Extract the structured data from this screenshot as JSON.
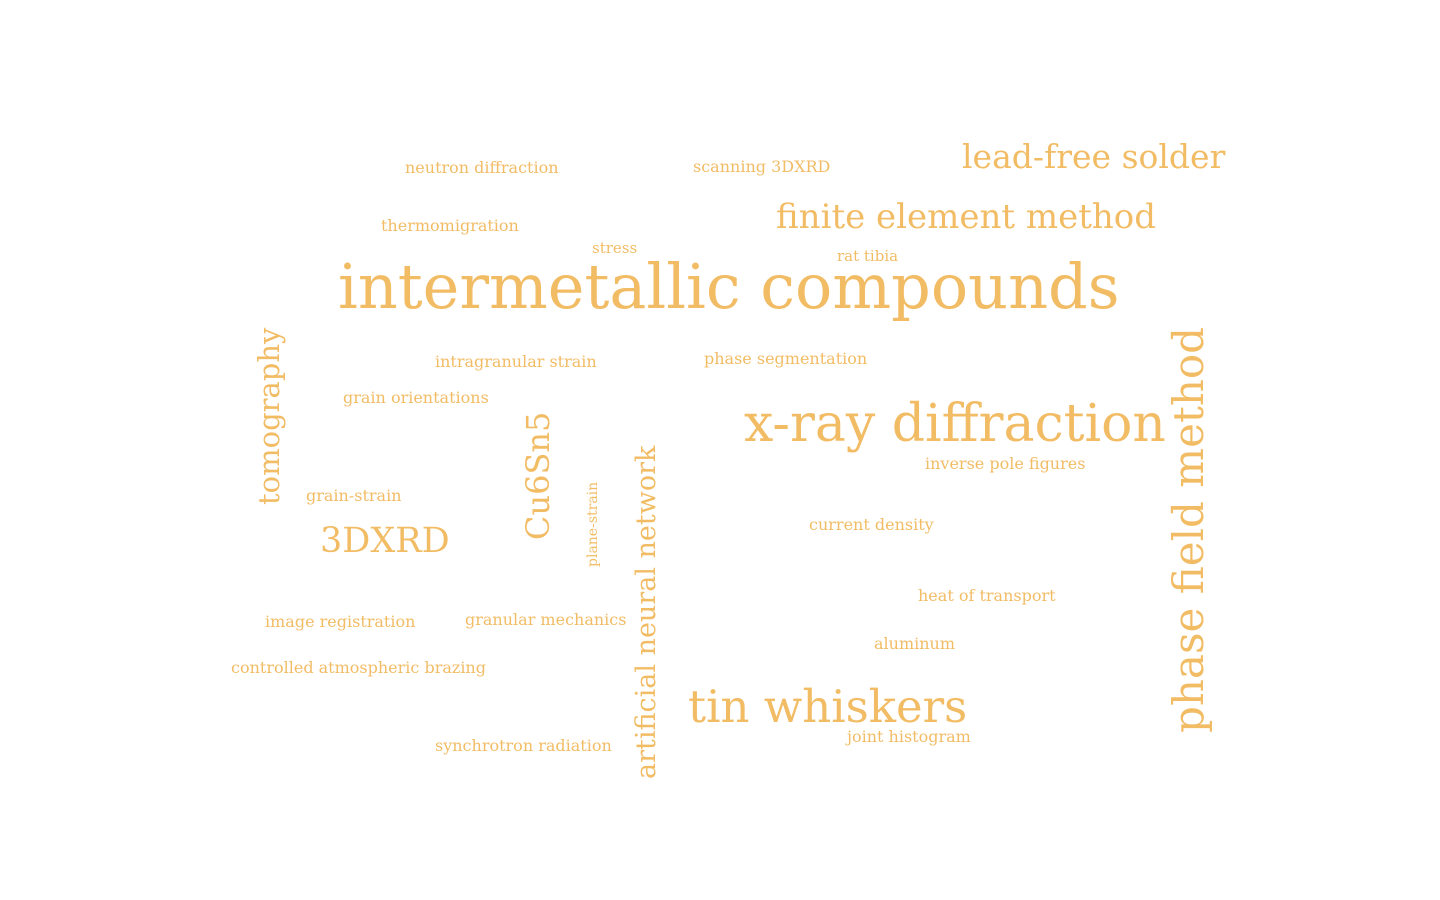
{
  "style": {
    "word_color": "#F2BC65",
    "background": "#FFFFFF"
  },
  "words": [
    {
      "id": "intermetallic-compounds",
      "text": "intermetallic compounds",
      "orientation": "horizontal"
    },
    {
      "id": "x-ray-diffraction",
      "text": "x-ray diffraction",
      "orientation": "horizontal"
    },
    {
      "id": "phase-field-method",
      "text": "phase field method",
      "orientation": "vertical"
    },
    {
      "id": "tin-whiskers",
      "text": "tin whiskers",
      "orientation": "horizontal"
    },
    {
      "id": "finite-element-method",
      "text": "finite element method",
      "orientation": "horizontal"
    },
    {
      "id": "lead-free-solder",
      "text": "lead-free solder",
      "orientation": "horizontal"
    },
    {
      "id": "artificial-neural-network",
      "text": "artificial neural network",
      "orientation": "vertical"
    },
    {
      "id": "tomography",
      "text": "tomography",
      "orientation": "vertical"
    },
    {
      "id": "cu6sn5",
      "text": "Cu6Sn5",
      "orientation": "vertical"
    },
    {
      "id": "3dxrd",
      "text": "3DXRD",
      "orientation": "horizontal"
    },
    {
      "id": "neutron-diffraction",
      "text": "neutron diffraction",
      "orientation": "horizontal"
    },
    {
      "id": "scanning-3dxrd",
      "text": "scanning 3DXRD",
      "orientation": "horizontal"
    },
    {
      "id": "thermomigration",
      "text": "thermomigration",
      "orientation": "horizontal"
    },
    {
      "id": "stress",
      "text": "stress",
      "orientation": "horizontal"
    },
    {
      "id": "rat-tibia",
      "text": "rat tibia",
      "orientation": "horizontal"
    },
    {
      "id": "intragranular-strain",
      "text": "intragranular strain",
      "orientation": "horizontal"
    },
    {
      "id": "phase-segmentation",
      "text": "phase segmentation",
      "orientation": "horizontal"
    },
    {
      "id": "grain-orientations",
      "text": "grain orientations",
      "orientation": "horizontal"
    },
    {
      "id": "inverse-pole-figures",
      "text": "inverse pole figures",
      "orientation": "horizontal"
    },
    {
      "id": "grain-strain",
      "text": "grain-strain",
      "orientation": "horizontal"
    },
    {
      "id": "plane-strain",
      "text": "plane-strain",
      "orientation": "vertical"
    },
    {
      "id": "current-density",
      "text": "current density",
      "orientation": "horizontal"
    },
    {
      "id": "heat-of-transport",
      "text": "heat of transport",
      "orientation": "horizontal"
    },
    {
      "id": "image-registration",
      "text": "image registration",
      "orientation": "horizontal"
    },
    {
      "id": "granular-mechanics",
      "text": "granular mechanics",
      "orientation": "horizontal"
    },
    {
      "id": "aluminum",
      "text": "aluminum",
      "orientation": "horizontal"
    },
    {
      "id": "controlled-atmospheric-brazing",
      "text": "controlled atmospheric brazing",
      "orientation": "horizontal"
    },
    {
      "id": "joint-histogram",
      "text": "joint histogram",
      "orientation": "horizontal"
    },
    {
      "id": "synchrotron-radiation",
      "text": "synchrotron radiation",
      "orientation": "horizontal"
    }
  ]
}
